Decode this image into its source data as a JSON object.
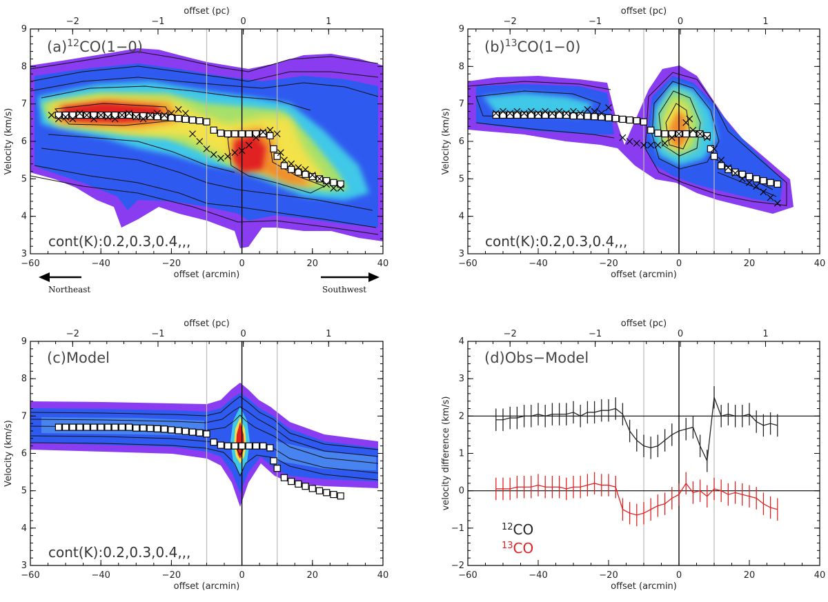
{
  "colors": {
    "black_series": "#222222",
    "red_series": "#e02020",
    "vline": "#bbbbbb"
  },
  "chart_data": [
    {
      "id": "a",
      "type": "pv-contour",
      "title_prefix": "(a)",
      "title_sup": "12",
      "title_main": "CO(1−0)",
      "contour_label": "cont(K):0.2,0.3,0.4,,,",
      "xlabel": "offset (arcmin)",
      "top_xlabel": "offset (pc)",
      "ylabel": "Velocity (km/s)",
      "xlim": [
        -60,
        40
      ],
      "ylim": [
        3,
        9
      ],
      "xticks": [
        -60,
        -40,
        -20,
        0,
        20,
        40
      ],
      "yticks": [
        3,
        4,
        5,
        6,
        7,
        8,
        9
      ],
      "top_ticks": [
        -2,
        -1,
        0,
        1
      ],
      "vlines": [
        -10,
        0,
        10
      ],
      "directions": {
        "left": "Northeast",
        "right": "Southwest"
      },
      "square_markers": [
        [
          -52,
          6.7
        ],
        [
          -50,
          6.7
        ],
        [
          -48,
          6.7
        ],
        [
          -46,
          6.7
        ],
        [
          -44,
          6.7
        ],
        [
          -42,
          6.7
        ],
        [
          -40,
          6.7
        ],
        [
          -38,
          6.7
        ],
        [
          -36,
          6.7
        ],
        [
          -34,
          6.7
        ],
        [
          -32,
          6.7
        ],
        [
          -30,
          6.68
        ],
        [
          -28,
          6.68
        ],
        [
          -26,
          6.67
        ],
        [
          -24,
          6.66
        ],
        [
          -22,
          6.65
        ],
        [
          -20,
          6.63
        ],
        [
          -18,
          6.61
        ],
        [
          -16,
          6.59
        ],
        [
          -14,
          6.57
        ],
        [
          -12,
          6.55
        ],
        [
          -10,
          6.52
        ],
        [
          -8,
          6.3
        ],
        [
          -6,
          6.22
        ],
        [
          -4,
          6.2
        ],
        [
          -2,
          6.2
        ],
        [
          0,
          6.2
        ],
        [
          2,
          6.2
        ],
        [
          4,
          6.2
        ],
        [
          6,
          6.2
        ],
        [
          8,
          6.15
        ],
        [
          9,
          5.8
        ],
        [
          10,
          5.6
        ],
        [
          12,
          5.35
        ],
        [
          14,
          5.25
        ],
        [
          16,
          5.18
        ],
        [
          18,
          5.12
        ],
        [
          20,
          5.06
        ],
        [
          22,
          5.0
        ],
        [
          24,
          4.95
        ],
        [
          26,
          4.9
        ],
        [
          28,
          4.86
        ]
      ],
      "cross_markers": [
        [
          -54,
          6.7
        ],
        [
          -52,
          6.6
        ],
        [
          -50,
          6.65
        ],
        [
          -48,
          6.6
        ],
        [
          -46,
          6.75
        ],
        [
          -44,
          6.7
        ],
        [
          -42,
          6.6
        ],
        [
          -40,
          6.7
        ],
        [
          -38,
          6.65
        ],
        [
          -36,
          6.6
        ],
        [
          -34,
          6.7
        ],
        [
          -32,
          6.75
        ],
        [
          -30,
          6.65
        ],
        [
          -28,
          6.6
        ],
        [
          -26,
          6.7
        ],
        [
          -24,
          6.75
        ],
        [
          -22,
          6.7
        ],
        [
          -20,
          6.75
        ],
        [
          -18,
          6.85
        ],
        [
          -16,
          6.75
        ],
        [
          -14,
          6.2
        ],
        [
          -12,
          6.0
        ],
        [
          -10,
          5.8
        ],
        [
          -8,
          5.65
        ],
        [
          -6,
          5.55
        ],
        [
          -4,
          5.6
        ],
        [
          -2,
          5.7
        ],
        [
          0,
          5.75
        ],
        [
          2,
          5.9
        ],
        [
          4,
          6.1
        ],
        [
          6,
          6.25
        ],
        [
          8,
          6.3
        ],
        [
          10,
          6.2
        ],
        [
          11,
          5.7
        ],
        [
          12,
          5.5
        ],
        [
          14,
          5.4
        ],
        [
          16,
          5.3
        ],
        [
          18,
          5.25
        ],
        [
          20,
          5.1
        ],
        [
          22,
          5.0
        ],
        [
          24,
          4.85
        ],
        [
          26,
          4.75
        ],
        [
          28,
          4.75
        ]
      ]
    },
    {
      "id": "b",
      "type": "pv-contour",
      "title_prefix": "(b)",
      "title_sup": "13",
      "title_main": "CO(1−0)",
      "contour_label": "cont(K):0.2,0.3,0.4,,,",
      "xlabel": "offset (arcmin)",
      "top_xlabel": "offset (pc)",
      "ylabel": "Velocity (km/s)",
      "xlim": [
        -60,
        40
      ],
      "ylim": [
        3,
        9
      ],
      "xticks": [
        -60,
        -40,
        -20,
        0,
        20,
        40
      ],
      "yticks": [
        3,
        4,
        5,
        6,
        7,
        8,
        9
      ],
      "top_ticks": [
        -2,
        -1,
        0,
        1
      ],
      "vlines": [
        -10,
        0,
        10
      ],
      "square_markers": [
        [
          -52,
          6.7
        ],
        [
          -50,
          6.7
        ],
        [
          -48,
          6.7
        ],
        [
          -46,
          6.7
        ],
        [
          -44,
          6.7
        ],
        [
          -42,
          6.7
        ],
        [
          -40,
          6.7
        ],
        [
          -38,
          6.7
        ],
        [
          -36,
          6.7
        ],
        [
          -34,
          6.7
        ],
        [
          -32,
          6.7
        ],
        [
          -30,
          6.68
        ],
        [
          -28,
          6.68
        ],
        [
          -26,
          6.67
        ],
        [
          -24,
          6.66
        ],
        [
          -22,
          6.65
        ],
        [
          -20,
          6.63
        ],
        [
          -18,
          6.61
        ],
        [
          -16,
          6.59
        ],
        [
          -14,
          6.57
        ],
        [
          -12,
          6.55
        ],
        [
          -10,
          6.52
        ],
        [
          -8,
          6.3
        ],
        [
          -6,
          6.22
        ],
        [
          -4,
          6.2
        ],
        [
          -2,
          6.2
        ],
        [
          0,
          6.2
        ],
        [
          2,
          6.2
        ],
        [
          4,
          6.2
        ],
        [
          6,
          6.2
        ],
        [
          8,
          6.15
        ],
        [
          9,
          5.8
        ],
        [
          10,
          5.6
        ],
        [
          12,
          5.35
        ],
        [
          14,
          5.25
        ],
        [
          16,
          5.18
        ],
        [
          18,
          5.12
        ],
        [
          20,
          5.06
        ],
        [
          22,
          5.0
        ],
        [
          24,
          4.95
        ],
        [
          26,
          4.9
        ],
        [
          28,
          4.86
        ]
      ],
      "cross_markers": [
        [
          -52,
          6.75
        ],
        [
          -50,
          6.8
        ],
        [
          -48,
          6.75
        ],
        [
          -46,
          6.8
        ],
        [
          -44,
          6.75
        ],
        [
          -42,
          6.8
        ],
        [
          -40,
          6.75
        ],
        [
          -38,
          6.8
        ],
        [
          -36,
          6.75
        ],
        [
          -34,
          6.8
        ],
        [
          -32,
          6.75
        ],
        [
          -30,
          6.8
        ],
        [
          -28,
          6.75
        ],
        [
          -26,
          6.85
        ],
        [
          -24,
          6.8
        ],
        [
          -22,
          6.75
        ],
        [
          -20,
          6.9
        ],
        [
          -16,
          6.1
        ],
        [
          -14,
          6.0
        ],
        [
          -12,
          5.95
        ],
        [
          -10,
          5.9
        ],
        [
          -8,
          5.9
        ],
        [
          -6,
          5.9
        ],
        [
          -4,
          5.95
        ],
        [
          -2,
          6.1
        ],
        [
          0,
          6.2
        ],
        [
          2,
          6.5
        ],
        [
          3,
          6.6
        ],
        [
          4,
          6.3
        ],
        [
          6,
          6.2
        ],
        [
          8,
          6.1
        ],
        [
          10,
          5.8
        ],
        [
          12,
          5.5
        ],
        [
          14,
          5.3
        ],
        [
          16,
          5.15
        ],
        [
          18,
          5.0
        ],
        [
          20,
          4.9
        ],
        [
          22,
          4.8
        ],
        [
          24,
          4.65
        ],
        [
          26,
          4.5
        ],
        [
          28,
          4.35
        ]
      ]
    },
    {
      "id": "c",
      "type": "pv-contour",
      "title_prefix": "(c)",
      "title_sup": "",
      "title_main": "Model",
      "contour_label": "cont(K):0.2,0.3,0.4,,,",
      "xlabel": "offset (arcmin)",
      "top_xlabel": "offset (pc)",
      "ylabel": "Velocity (km/s)",
      "xlim": [
        -60,
        40
      ],
      "ylim": [
        3,
        9
      ],
      "xticks": [
        -60,
        -40,
        -20,
        0,
        20,
        40
      ],
      "yticks": [
        3,
        4,
        5,
        6,
        7,
        8,
        9
      ],
      "top_ticks": [
        -2,
        -1,
        0,
        1
      ],
      "vlines": [
        -10,
        0,
        10
      ],
      "square_markers": [
        [
          -52,
          6.7
        ],
        [
          -50,
          6.7
        ],
        [
          -48,
          6.7
        ],
        [
          -46,
          6.7
        ],
        [
          -44,
          6.7
        ],
        [
          -42,
          6.7
        ],
        [
          -40,
          6.7
        ],
        [
          -38,
          6.7
        ],
        [
          -36,
          6.7
        ],
        [
          -34,
          6.7
        ],
        [
          -32,
          6.7
        ],
        [
          -30,
          6.68
        ],
        [
          -28,
          6.68
        ],
        [
          -26,
          6.67
        ],
        [
          -24,
          6.66
        ],
        [
          -22,
          6.65
        ],
        [
          -20,
          6.63
        ],
        [
          -18,
          6.61
        ],
        [
          -16,
          6.59
        ],
        [
          -14,
          6.57
        ],
        [
          -12,
          6.55
        ],
        [
          -10,
          6.52
        ],
        [
          -8,
          6.3
        ],
        [
          -6,
          6.22
        ],
        [
          -4,
          6.2
        ],
        [
          -2,
          6.2
        ],
        [
          0,
          6.2
        ],
        [
          2,
          6.2
        ],
        [
          4,
          6.2
        ],
        [
          6,
          6.2
        ],
        [
          8,
          6.15
        ],
        [
          9,
          5.8
        ],
        [
          10,
          5.6
        ],
        [
          12,
          5.35
        ],
        [
          14,
          5.25
        ],
        [
          16,
          5.18
        ],
        [
          18,
          5.12
        ],
        [
          20,
          5.06
        ],
        [
          22,
          5.0
        ],
        [
          24,
          4.95
        ],
        [
          26,
          4.9
        ],
        [
          28,
          4.86
        ]
      ],
      "cross_markers": []
    },
    {
      "id": "d",
      "type": "line",
      "title_prefix": "(d)",
      "title_main": "Obs−Model",
      "xlabel": "offset (arcmin)",
      "top_xlabel": "offset (pc)",
      "ylabel": "velocity difference (km/s)",
      "xlim": [
        -60,
        40
      ],
      "ylim": [
        -2,
        4
      ],
      "xticks": [
        -60,
        -40,
        -20,
        0,
        20,
        40
      ],
      "yticks": [
        -2,
        -1,
        0,
        1,
        2,
        3,
        4
      ],
      "top_ticks": [
        -2,
        -1,
        0,
        1
      ],
      "vlines": [
        -10,
        0,
        10
      ],
      "hlines": [
        2,
        0
      ],
      "errorbar": 0.3,
      "x": [
        -52,
        -50,
        -48,
        -46,
        -44,
        -42,
        -40,
        -38,
        -36,
        -34,
        -32,
        -30,
        -28,
        -26,
        -24,
        -22,
        -20,
        -18,
        -16,
        -14,
        -12,
        -10,
        -8,
        -6,
        -4,
        -2,
        0,
        2,
        4,
        6,
        8,
        10,
        12,
        14,
        16,
        18,
        20,
        22,
        24,
        26,
        28
      ],
      "series": [
        {
          "name": "12CO",
          "sup": "12",
          "label": "CO",
          "values": [
            1.9,
            1.9,
            1.95,
            1.95,
            2.0,
            2.0,
            2.05,
            2.0,
            2.05,
            2.05,
            2.05,
            2.1,
            2.0,
            2.1,
            2.1,
            2.15,
            2.15,
            2.2,
            2.05,
            1.6,
            1.35,
            1.2,
            1.15,
            1.2,
            1.35,
            1.5,
            1.6,
            1.65,
            1.7,
            1.2,
            0.8,
            2.5,
            2.0,
            2.05,
            2.0,
            2.0,
            2.05,
            1.85,
            1.75,
            1.8,
            1.75
          ]
        },
        {
          "name": "13CO",
          "sup": "13",
          "label": "CO",
          "values": [
            0.05,
            0.05,
            0.05,
            0.1,
            0.1,
            0.1,
            0.15,
            0.1,
            0.1,
            0.1,
            0.05,
            0.1,
            0.1,
            0.15,
            0.2,
            0.15,
            0.15,
            0.1,
            -0.5,
            -0.6,
            -0.65,
            -0.6,
            -0.5,
            -0.4,
            -0.35,
            -0.2,
            -0.1,
            0.2,
            -0.05,
            0.0,
            -0.15,
            0.05,
            0.0,
            -0.1,
            -0.05,
            -0.1,
            -0.15,
            -0.2,
            -0.35,
            -0.45,
            -0.5
          ]
        }
      ]
    }
  ]
}
